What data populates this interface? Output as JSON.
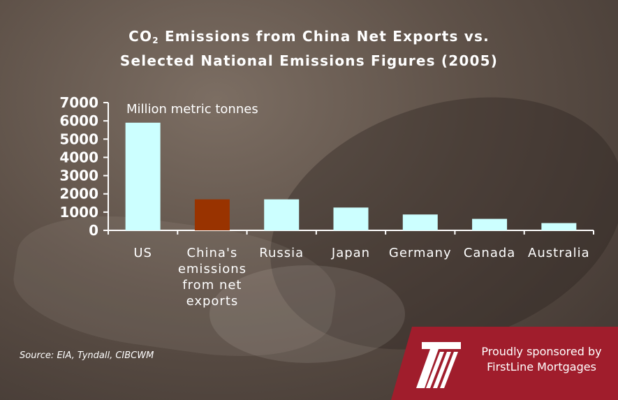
{
  "title_line1_pre": "CO",
  "title_sub": "2",
  "title_line1_post": " Emissions from China Net Exports vs.",
  "title_line2": "Selected National Emissions Figures (2005)",
  "source": "Source: EIA, Tyndall, CIBCWM",
  "sponsor": {
    "line1": "Proudly sponsored by",
    "line2": "FirstLine Mortgages",
    "logo_icon": "firstline-logo-icon"
  },
  "colors": {
    "bar_default": "#ccffff",
    "bar_highlight": "#993300",
    "sponsor_red": "#a01d2c",
    "text": "#ffffff"
  },
  "chart_data": {
    "type": "bar",
    "categories": [
      [
        "US"
      ],
      [
        "China's",
        "emissions",
        "from net",
        "exports"
      ],
      [
        "Russia"
      ],
      [
        "Japan"
      ],
      [
        "Germany"
      ],
      [
        "Canada"
      ],
      [
        "Australia"
      ]
    ],
    "values": [
      5900,
      1700,
      1700,
      1250,
      870,
      630,
      400
    ],
    "highlight_index": 1,
    "unit_label": "Million metric tonnes",
    "ylim": [
      0,
      7000
    ],
    "yticks": [
      0,
      1000,
      2000,
      3000,
      4000,
      5000,
      6000,
      7000
    ],
    "grid": false
  }
}
